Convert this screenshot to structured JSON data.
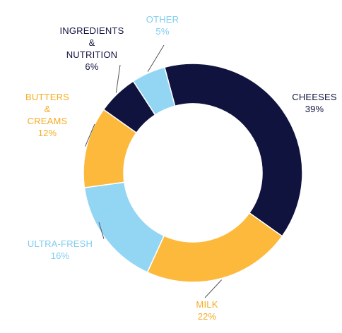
{
  "chart_data": {
    "type": "pie",
    "variant": "donut",
    "slices": [
      {
        "label_lines": [
          "CHEESES"
        ],
        "label": "CHEESES",
        "value": 39,
        "value_label": "39%",
        "color": "#11133f",
        "text_color": "#11133f"
      },
      {
        "label_lines": [
          "MILK"
        ],
        "label": "MILK",
        "value": 22,
        "value_label": "22%",
        "color": "#fdb93c",
        "text_color": "#f5ac22"
      },
      {
        "label_lines": [
          "ULTRA-FRESH"
        ],
        "label": "ULTRA-FRESH",
        "value": 16,
        "value_label": "16%",
        "color": "#93d6f4",
        "text_color": "#7fcdf0"
      },
      {
        "label_lines": [
          "BUTTERS",
          "&",
          "CREAMS"
        ],
        "label": "BUTTERS & CREAMS",
        "value": 12,
        "value_label": "12%",
        "color": "#fdb93c",
        "text_color": "#f5ac22"
      },
      {
        "label_lines": [
          "INGREDIENTS",
          "&",
          "NUTRITION"
        ],
        "label": "INGREDIENTS & NUTRITION",
        "value": 6,
        "value_label": "6%",
        "color": "#11133f",
        "text_color": "#11133f"
      },
      {
        "label_lines": [
          "OTHER"
        ],
        "label": "OTHER",
        "value": 5,
        "value_label": "5%",
        "color": "#93d6f4",
        "text_color": "#7fcdf0"
      }
    ],
    "legend": "none",
    "grid": false
  }
}
